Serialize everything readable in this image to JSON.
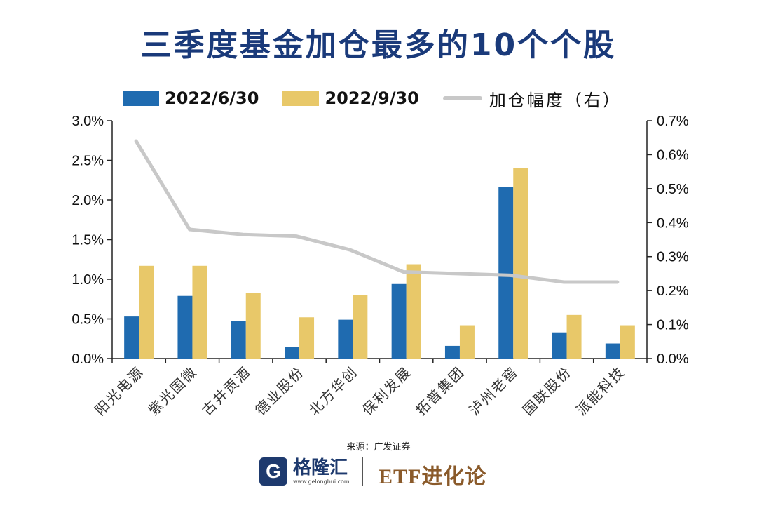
{
  "header": {
    "title": "三季度基金加仓最多的10个个股"
  },
  "legend": {
    "series1": "2022/6/30",
    "series2": "2022/9/30",
    "line": "加仓幅度（右）"
  },
  "colors": {
    "series1": "#1f6bb0",
    "series2": "#e8c869",
    "line": "#c8c8c8",
    "title": "#1a3a7a"
  },
  "chart_data": {
    "type": "bar",
    "title": "三季度基金加仓最多的10个个股",
    "categories": [
      "阳光电源",
      "紫光国微",
      "古井贡酒",
      "德业股份",
      "北方华创",
      "保利发展",
      "拓普集团",
      "泸州老窖",
      "国联股份",
      "派能科技"
    ],
    "series": [
      {
        "name": "2022/6/30",
        "axis": "left",
        "values": [
          0.53,
          0.79,
          0.47,
          0.15,
          0.49,
          0.94,
          0.16,
          2.16,
          0.33,
          0.19
        ]
      },
      {
        "name": "2022/9/30",
        "axis": "left",
        "values": [
          1.17,
          1.17,
          0.83,
          0.52,
          0.8,
          1.19,
          0.42,
          2.4,
          0.55,
          0.42
        ]
      },
      {
        "name": "加仓幅度（右）",
        "type": "line",
        "axis": "right",
        "values": [
          0.64,
          0.38,
          0.365,
          0.36,
          0.32,
          0.255,
          0.25,
          0.245,
          0.225,
          0.225
        ]
      }
    ],
    "ylim": [
      0,
      3.0
    ],
    "y2lim": [
      0,
      0.7
    ],
    "yticks": [
      "0.0%",
      "0.5%",
      "1.0%",
      "1.5%",
      "2.0%",
      "2.5%",
      "3.0%"
    ],
    "y2ticks": [
      "0.0%",
      "0.1%",
      "0.2%",
      "0.3%",
      "0.4%",
      "0.5%",
      "0.6%",
      "0.7%"
    ],
    "legend_position": "top"
  },
  "source": "来源：广发证券",
  "footer": {
    "brand_name": "格隆汇",
    "brand_url": "www.gelonghui.com",
    "logo_letter": "G",
    "right_text": "ETF进化论"
  }
}
